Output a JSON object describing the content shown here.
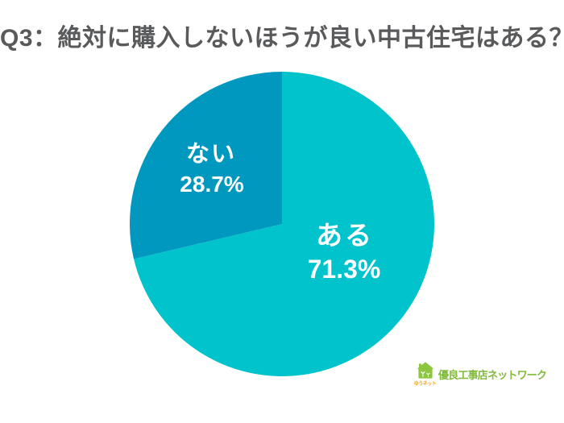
{
  "title": "Q3：絶対に購入しないほうが良い中古住宅はある？",
  "chart_data": {
    "type": "pie",
    "title": "Q3：絶対に購入しないほうが良い中古住宅はある？",
    "direction": "clockwise",
    "start_angle": "top",
    "legend": "none",
    "labels_inside": true,
    "slices": [
      {
        "label": "ある",
        "value": 71.3,
        "display": "71.3%",
        "color": "#00c3cc"
      },
      {
        "label": "ない",
        "value": 28.7,
        "display": "28.7%",
        "color": "#0098bf"
      }
    ]
  },
  "colors": {
    "background": "#ffffff",
    "title_text": "#595a5c",
    "slice_label_text": "#ffffff"
  },
  "logo": {
    "name": "優良工事店ネットワーク",
    "icon": "house-with-sprouts-icon",
    "icon_caption": "ゆうネット",
    "house_color": "#8dc63f",
    "text_color": "#82ba3c",
    "caption_color": "#f5a31c"
  }
}
